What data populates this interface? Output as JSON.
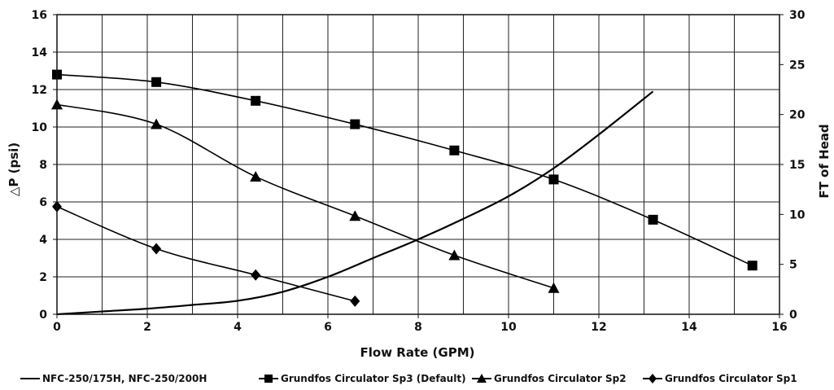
{
  "chart_data": {
    "type": "line",
    "title": "",
    "xlabel": "Flow Rate (GPM)",
    "ylabel": "△P (psi)",
    "y2label": "FT of Head",
    "xlim": [
      0,
      16
    ],
    "ylim": [
      0,
      16
    ],
    "y2lim": [
      0,
      30
    ],
    "xticks": [
      "0",
      "2",
      "4",
      "6",
      "8",
      "10",
      "12",
      "14",
      "16"
    ],
    "yticks": [
      "0",
      "2",
      "4",
      "6",
      "8",
      "10",
      "12",
      "14",
      "16"
    ],
    "y2ticks": [
      "0",
      "5",
      "10",
      "15",
      "20",
      "25",
      "30"
    ],
    "grid": true,
    "legend_position": "bottom",
    "series": [
      {
        "name": "NFC-250/175H, NFC-250/200H",
        "marker": "none",
        "color": "#000000",
        "x": [
          0,
          1,
          2,
          3,
          4,
          5,
          6,
          7,
          8,
          9,
          10,
          11,
          12,
          13.2
        ],
        "y": [
          0,
          0.15,
          0.3,
          0.5,
          0.72,
          1.2,
          2.0,
          3.0,
          4.0,
          5.1,
          6.3,
          7.8,
          9.6,
          11.9
        ]
      },
      {
        "name": "Grundfos Circulator Sp3 (Default)",
        "marker": "square",
        "color": "#000000",
        "x": [
          0,
          2.2,
          4.4,
          6.6,
          8.8,
          11,
          13.2,
          15.4
        ],
        "y": [
          12.8,
          12.4,
          11.4,
          10.15,
          8.75,
          7.2,
          5.05,
          2.6
        ]
      },
      {
        "name": "Grundfos Circulator Sp2",
        "marker": "triangle",
        "color": "#000000",
        "x": [
          0,
          2.2,
          4.4,
          6.6,
          8.8,
          11
        ],
        "y": [
          11.2,
          10.15,
          7.35,
          5.25,
          3.15,
          1.4
        ]
      },
      {
        "name": "Grundfos Circulator Sp1",
        "marker": "diamond",
        "color": "#000000",
        "x": [
          0,
          2.2,
          4.4,
          6.6
        ],
        "y": [
          5.75,
          3.5,
          2.1,
          0.7
        ]
      }
    ]
  }
}
